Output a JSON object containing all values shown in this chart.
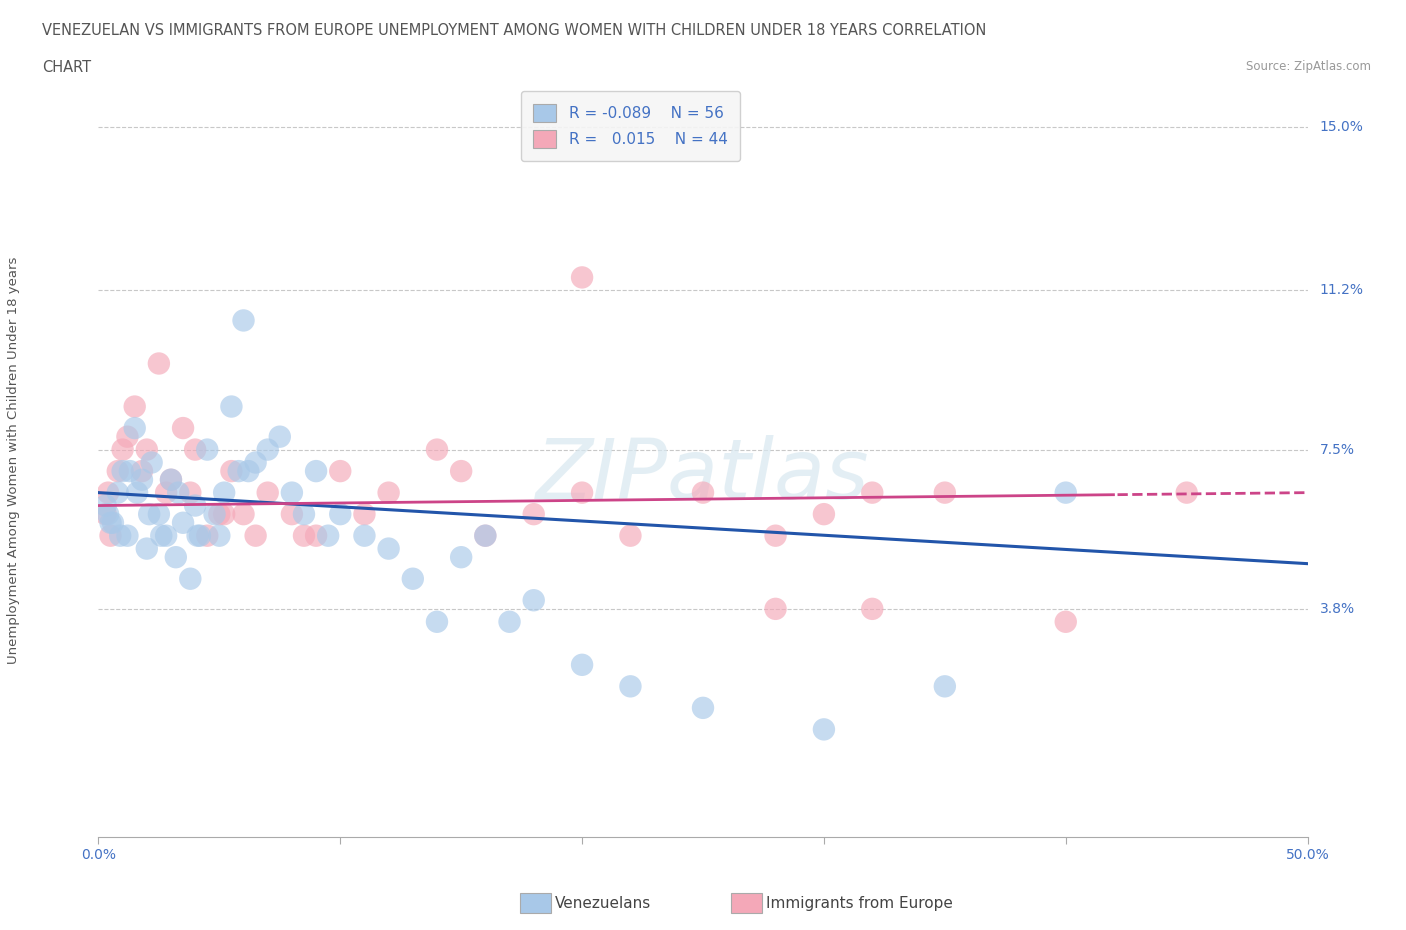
{
  "title_line1": "VENEZUELAN VS IMMIGRANTS FROM EUROPE UNEMPLOYMENT AMONG WOMEN WITH CHILDREN UNDER 18 YEARS CORRELATION",
  "title_line2": "CHART",
  "source_text": "Source: ZipAtlas.com",
  "ylabel": "Unemployment Among Women with Children Under 18 years",
  "watermark": "ZIPatlas",
  "xlim": [
    0,
    50
  ],
  "ylim": [
    -1.5,
    16.0
  ],
  "ytick_vals": [
    3.8,
    7.5,
    11.2,
    15.0
  ],
  "ytick_labels": [
    "3.8%",
    "7.5%",
    "11.2%",
    "15.0%"
  ],
  "text_color": "#4472c4",
  "grid_color": "#c8c8c8",
  "blue_color": "#a8c8e8",
  "pink_color": "#f4a8b8",
  "blue_line_color": "#2255aa",
  "pink_line_color": "#cc4488",
  "title_color": "#555555",
  "venezuelan_x": [
    0.3,
    0.5,
    0.8,
    1.0,
    1.2,
    1.5,
    1.8,
    2.0,
    2.2,
    2.5,
    2.8,
    3.0,
    3.2,
    3.5,
    3.8,
    4.0,
    4.2,
    4.5,
    4.8,
    5.0,
    5.2,
    5.5,
    5.8,
    6.0,
    6.5,
    7.0,
    7.5,
    8.0,
    8.5,
    9.0,
    9.5,
    10.0,
    11.0,
    12.0,
    13.0,
    14.0,
    15.0,
    16.0,
    17.0,
    18.0,
    20.0,
    22.0,
    25.0,
    30.0,
    35.0,
    40.0,
    0.4,
    0.6,
    0.9,
    1.3,
    1.6,
    2.1,
    2.6,
    3.3,
    4.1,
    6.2
  ],
  "venezuelan_y": [
    6.2,
    5.8,
    6.5,
    7.0,
    5.5,
    8.0,
    6.8,
    5.2,
    7.2,
    6.0,
    5.5,
    6.8,
    5.0,
    5.8,
    4.5,
    6.2,
    5.5,
    7.5,
    6.0,
    5.5,
    6.5,
    8.5,
    7.0,
    10.5,
    7.2,
    7.5,
    7.8,
    6.5,
    6.0,
    7.0,
    5.5,
    6.0,
    5.5,
    5.2,
    4.5,
    3.5,
    5.0,
    5.5,
    3.5,
    4.0,
    2.5,
    2.0,
    1.5,
    1.0,
    2.0,
    6.5,
    6.0,
    5.8,
    5.5,
    7.0,
    6.5,
    6.0,
    5.5,
    6.5,
    5.5,
    7.0
  ],
  "europe_x": [
    0.3,
    0.5,
    0.8,
    1.0,
    1.5,
    2.0,
    2.5,
    3.0,
    3.5,
    4.0,
    4.5,
    5.0,
    5.5,
    6.0,
    7.0,
    8.0,
    9.0,
    10.0,
    12.0,
    14.0,
    16.0,
    18.0,
    20.0,
    22.0,
    25.0,
    30.0,
    35.0,
    40.0,
    0.4,
    1.2,
    1.8,
    2.8,
    3.8,
    5.2,
    6.5,
    8.5,
    11.0,
    15.0,
    20.0,
    28.0,
    32.0,
    45.0,
    28.0,
    32.0
  ],
  "europe_y": [
    6.0,
    5.5,
    7.0,
    7.5,
    8.5,
    7.5,
    9.5,
    6.8,
    8.0,
    7.5,
    5.5,
    6.0,
    7.0,
    6.0,
    6.5,
    6.0,
    5.5,
    7.0,
    6.5,
    7.5,
    5.5,
    6.0,
    6.5,
    5.5,
    6.5,
    6.0,
    6.5,
    3.5,
    6.5,
    7.8,
    7.0,
    6.5,
    6.5,
    6.0,
    5.5,
    5.5,
    6.0,
    7.0,
    11.5,
    3.8,
    3.8,
    6.5,
    5.5,
    6.5
  ]
}
